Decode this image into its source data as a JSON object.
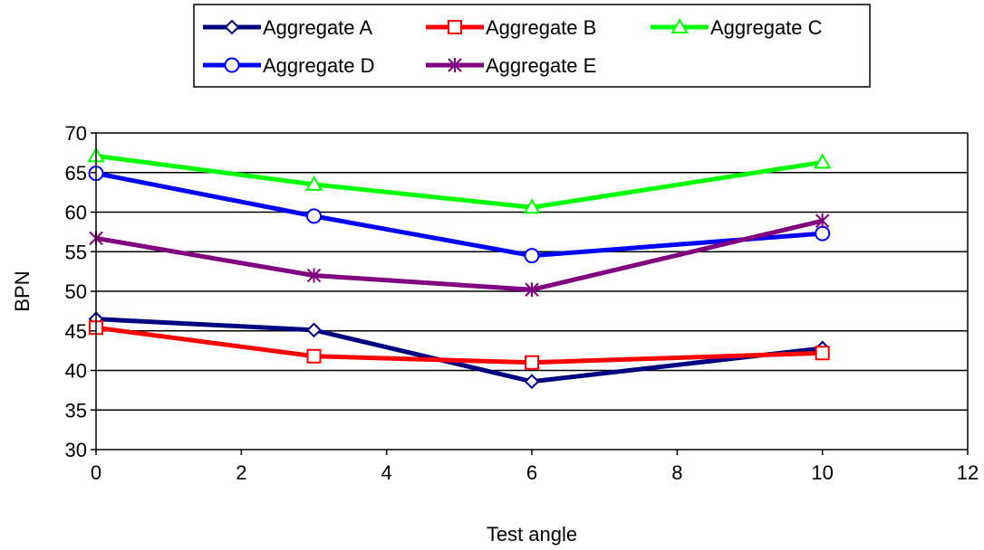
{
  "chart_data": {
    "type": "line",
    "title": "",
    "xlabel": "Test angle",
    "ylabel": "BPN",
    "xlim": [
      0,
      12
    ],
    "ylim": [
      30,
      70
    ],
    "x_ticks": [
      0,
      2,
      4,
      6,
      8,
      10,
      12
    ],
    "y_ticks": [
      30,
      35,
      40,
      45,
      50,
      55,
      60,
      65,
      70
    ],
    "grid": "horizontal",
    "legend_position": "top-center",
    "series": [
      {
        "name": "Aggregate A",
        "color": "#000080",
        "marker": "diamond",
        "x": [
          0,
          3,
          6,
          10
        ],
        "y": [
          46.5,
          45.1,
          38.6,
          42.8
        ]
      },
      {
        "name": "Aggregate B",
        "color": "#ff0000",
        "marker": "square",
        "x": [
          0,
          3,
          6,
          10
        ],
        "y": [
          45.4,
          41.8,
          41.0,
          42.2
        ]
      },
      {
        "name": "Aggregate C",
        "color": "#00ff00",
        "marker": "triangle",
        "x": [
          0,
          3,
          6,
          10
        ],
        "y": [
          67.1,
          63.5,
          60.6,
          66.3
        ]
      },
      {
        "name": "Aggregate D",
        "color": "#0000ff",
        "marker": "circle",
        "x": [
          0,
          3,
          6,
          10
        ],
        "y": [
          64.9,
          59.5,
          54.5,
          57.3
        ]
      },
      {
        "name": "Aggregate E",
        "color": "#800080",
        "marker": "asterisk",
        "x": [
          0,
          3,
          6,
          10
        ],
        "y": [
          56.7,
          52.0,
          50.2,
          58.9
        ]
      }
    ]
  }
}
